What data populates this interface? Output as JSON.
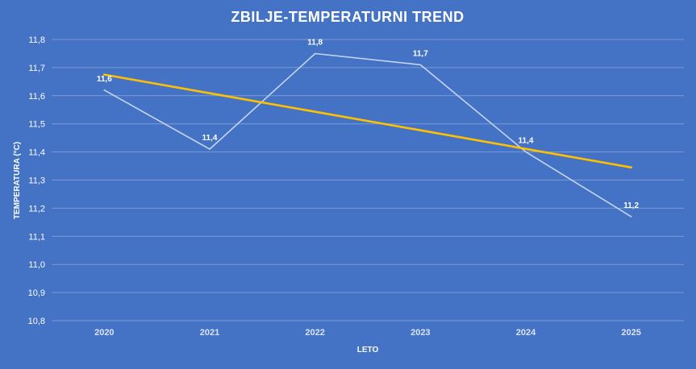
{
  "chart_data": {
    "type": "line",
    "title": "ZBILJE-TEMPERATURNI TREND",
    "xlabel": "LETO",
    "ylabel": "TEMPERATURA (°C)",
    "categories": [
      "2020",
      "2021",
      "2022",
      "2023",
      "2024",
      "2025"
    ],
    "y_ticks": [
      "10,8",
      "10,9",
      "11,0",
      "11,1",
      "11,2",
      "11,3",
      "11,4",
      "11,5",
      "11,6",
      "11,7",
      "11,8"
    ],
    "ylim": [
      10.8,
      11.8
    ],
    "grid": true,
    "series": [
      {
        "values": [
          11.62,
          11.41,
          11.75,
          11.71,
          11.4,
          11.17
        ],
        "labels": [
          "11,6",
          "11,4",
          "11,8",
          "11,7",
          "11,4",
          "11,2"
        ],
        "color": "#c5d5f0"
      },
      {
        "values": [
          11.675,
          11.609,
          11.543,
          11.477,
          11.411,
          11.345
        ],
        "color": "#ffc000"
      }
    ]
  }
}
